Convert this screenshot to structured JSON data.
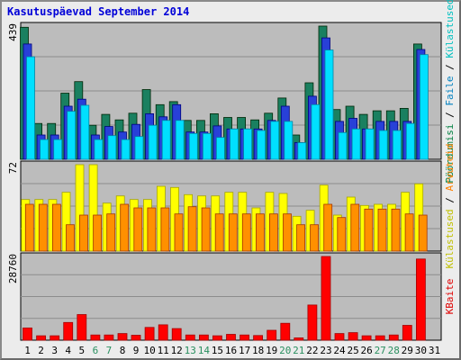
{
  "chart_data": {
    "type": "bar",
    "title": "Kasutuspäevad September 2014",
    "categories": [
      "1",
      "2",
      "3",
      "4",
      "5",
      "6",
      "7",
      "8",
      "9",
      "10",
      "11",
      "12",
      "13",
      "14",
      "15",
      "16",
      "17",
      "18",
      "19",
      "20",
      "21",
      "22",
      "23",
      "24",
      "25",
      "26",
      "27",
      "28",
      "29",
      "30",
      "31"
    ],
    "weekend_days": [
      "6",
      "7",
      "13",
      "14",
      "20",
      "21",
      "27",
      "28"
    ],
    "panels": [
      {
        "id": "hits",
        "ymax_label": "439",
        "ymax": 439,
        "axis_label_parts": [
          {
            "text": "Pöördumisi",
            "color": "#008040"
          },
          {
            "text": " / ",
            "color": "#000000"
          },
          {
            "text": "Faile",
            "color": "#0080c0"
          },
          {
            "text": " / ",
            "color": "#000000"
          },
          {
            "text": "Külastused",
            "color": "#00c0c0"
          }
        ],
        "series": [
          {
            "name": "Pöördumisi",
            "color": "#1a8060",
            "values": [
              435,
              118,
              118,
              218,
              256,
              112,
              148,
              130,
              152,
              230,
              180,
              190,
              128,
              128,
              150,
              138,
              138,
              130,
              152,
              202,
              80,
              252,
              439,
              164,
              175,
              148,
              160,
              160,
              168,
              380,
              0
            ]
          },
          {
            "name": "Faile",
            "color": "#2840d8",
            "values": [
              380,
              80,
              80,
              175,
              198,
              80,
              108,
              90,
              115,
              150,
              140,
              180,
              90,
              90,
              110,
              100,
              100,
              100,
              128,
              175,
              55,
              208,
              400,
              125,
              135,
              100,
              125,
              125,
              125,
              362,
              0
            ]
          },
          {
            "name": "Külastused",
            "color": "#00e0ff",
            "values": [
              338,
              65,
              65,
              158,
              178,
              65,
              78,
              65,
              75,
              112,
              128,
              128,
              85,
              85,
              72,
              100,
              100,
              95,
              125,
              125,
              55,
              180,
              360,
              88,
              100,
              100,
              95,
              95,
              118,
              345,
              0
            ]
          }
        ]
      },
      {
        "id": "sites",
        "ymax_label": "72",
        "ymax": 72,
        "axis_label_parts": [
          {
            "text": "Külastused",
            "color": "#c0c000"
          },
          {
            "text": " / ",
            "color": "#000000"
          },
          {
            "text": "Arvuteid",
            "color": "#ff8000"
          }
        ],
        "series": [
          {
            "name": "Külastused",
            "color": "#ffff00",
            "values": [
              43,
              43,
              43,
              49,
              72,
              72,
              40,
              46,
              43,
              43,
              54,
              53,
              47,
              46,
              46,
              49,
              49,
              36,
              49,
              48,
              29,
              34,
              55,
              30,
              45,
              38,
              39,
              39,
              49,
              56,
              0
            ]
          },
          {
            "name": "Arvuteid",
            "color": "#ff9000",
            "values": [
              39,
              39,
              39,
              22,
              30,
              30,
              31,
              39,
              36,
              36,
              36,
              31,
              37,
              36,
              31,
              31,
              31,
              31,
              31,
              31,
              22,
              22,
              39,
              28,
              39,
              35,
              35,
              35,
              31,
              30,
              0
            ]
          }
        ]
      },
      {
        "id": "kbytes",
        "ymax_label": "28760",
        "ymax": 28760,
        "axis_label_parts": [
          {
            "text": "KBaite",
            "color": "#e00000"
          }
        ],
        "series": [
          {
            "name": "KBaite",
            "color": "#ff0000",
            "values": [
              4200,
              1500,
              1500,
              6100,
              8800,
              1800,
              1800,
              2300,
              1700,
              4400,
              5300,
              4000,
              1800,
              1800,
              1500,
              2000,
              1800,
              1600,
              3400,
              5800,
              800,
              12100,
              28760,
              2300,
              2600,
              1500,
              1500,
              1800,
              5100,
              27900,
              0
            ]
          }
        ]
      }
    ]
  }
}
